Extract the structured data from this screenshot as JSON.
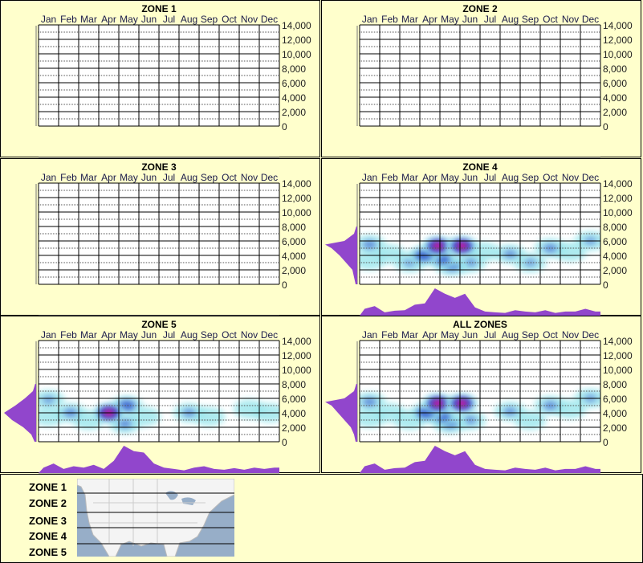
{
  "chart_data": [
    {
      "type": "heatmap",
      "title": "ZONE 1",
      "months": [
        "Jan",
        "Feb",
        "Mar",
        "Apr",
        "May",
        "Jun",
        "Jul",
        "Aug",
        "Sep",
        "Oct",
        "Nov",
        "Dec"
      ],
      "y_ticks": [
        "14,000",
        "12,000",
        "10,000",
        "8,000",
        "6,000",
        "4,000",
        "2,000",
        "0"
      ],
      "ylim": [
        0,
        14000
      ],
      "blobs": [],
      "month_profile": [],
      "altitude_profile": []
    },
    {
      "type": "heatmap",
      "title": "ZONE 2",
      "months": [
        "Jan",
        "Feb",
        "Mar",
        "Apr",
        "May",
        "Jun",
        "Jul",
        "Aug",
        "Sep",
        "Oct",
        "Nov",
        "Dec"
      ],
      "y_ticks": [
        "14,000",
        "12,000",
        "10,000",
        "8,000",
        "6,000",
        "4,000",
        "2,000",
        "0"
      ],
      "ylim": [
        0,
        14000
      ],
      "blobs": [],
      "month_profile": [],
      "altitude_profile": []
    },
    {
      "type": "heatmap",
      "title": "ZONE 3",
      "months": [
        "Jan",
        "Feb",
        "Mar",
        "Apr",
        "May",
        "Jun",
        "Jul",
        "Aug",
        "Sep",
        "Oct",
        "Nov",
        "Dec"
      ],
      "y_ticks": [
        "14,000",
        "12,000",
        "10,000",
        "8,000",
        "6,000",
        "4,000",
        "2,000",
        "0"
      ],
      "ylim": [
        0,
        14000
      ],
      "blobs": [],
      "month_profile": [],
      "altitude_profile": []
    },
    {
      "type": "heatmap",
      "title": "ZONE 4",
      "months": [
        "Jan",
        "Feb",
        "Mar",
        "Apr",
        "May",
        "Jun",
        "Jul",
        "Aug",
        "Sep",
        "Oct",
        "Nov",
        "Dec"
      ],
      "y_ticks": [
        "14,000",
        "12,000",
        "10,000",
        "8,000",
        "6,000",
        "4,000",
        "2,000",
        "0"
      ],
      "ylim": [
        0,
        14000
      ],
      "blobs": [
        [
          0.5,
          5500,
          0.55
        ],
        [
          0.5,
          3300,
          0.35
        ],
        [
          1.5,
          4200,
          0.4
        ],
        [
          2.5,
          3000,
          0.45
        ],
        [
          3.2,
          4000,
          0.8
        ],
        [
          4.1,
          3500,
          0.75
        ],
        [
          3.9,
          5300,
          1.0
        ],
        [
          5.1,
          5300,
          1.0
        ],
        [
          4.6,
          2500,
          0.6
        ],
        [
          5.5,
          3000,
          0.5
        ],
        [
          6.2,
          4500,
          0.3
        ],
        [
          7.5,
          4200,
          0.5
        ],
        [
          8.5,
          3000,
          0.45
        ],
        [
          9.5,
          5000,
          0.55
        ],
        [
          10.5,
          4500,
          0.3
        ],
        [
          11.5,
          6000,
          0.45
        ]
      ],
      "month_profile": [
        0.25,
        0.35,
        0.12,
        0.18,
        0.2,
        0.4,
        0.45,
        1.0,
        0.8,
        0.65,
        0.8,
        0.3,
        0.15,
        0.12,
        0.1,
        0.2,
        0.15,
        0.12,
        0.2,
        0.1,
        0.15,
        0.15,
        0.25,
        0.15
      ],
      "altitude_profile": [
        [
          0,
          0.05
        ],
        [
          1000,
          0.1
        ],
        [
          2000,
          0.15
        ],
        [
          3000,
          0.35
        ],
        [
          4000,
          0.55
        ],
        [
          5000,
          0.8
        ],
        [
          5500,
          1.0
        ],
        [
          6000,
          0.4
        ],
        [
          7000,
          0.1
        ],
        [
          8000,
          0.03
        ]
      ]
    },
    {
      "type": "heatmap",
      "title": "ZONE 5",
      "months": [
        "Jan",
        "Feb",
        "Mar",
        "Apr",
        "May",
        "Jun",
        "Jul",
        "Aug",
        "Sep",
        "Oct",
        "Nov",
        "Dec"
      ],
      "y_ticks": [
        "14,000",
        "12,000",
        "10,000",
        "8,000",
        "6,000",
        "4,000",
        "2,000",
        "0"
      ],
      "ylim": [
        0,
        14000
      ],
      "blobs": [
        [
          0.5,
          5800,
          0.45
        ],
        [
          0.5,
          3500,
          0.4
        ],
        [
          1.6,
          4000,
          0.55
        ],
        [
          2.5,
          3000,
          0.35
        ],
        [
          3.5,
          4000,
          1.0
        ],
        [
          4.4,
          5000,
          0.75
        ],
        [
          4.3,
          2500,
          0.55
        ],
        [
          5.3,
          3500,
          0.4
        ],
        [
          7.5,
          4000,
          0.5
        ],
        [
          8.5,
          3500,
          0.35
        ],
        [
          10.5,
          4500,
          0.3
        ],
        [
          11.5,
          4000,
          0.35
        ]
      ],
      "month_profile": [
        0.2,
        0.35,
        0.15,
        0.25,
        0.2,
        0.3,
        0.15,
        0.45,
        1.0,
        0.8,
        0.75,
        0.35,
        0.2,
        0.15,
        0.1,
        0.2,
        0.25,
        0.15,
        0.12,
        0.18,
        0.12,
        0.2,
        0.15,
        0.2
      ],
      "altitude_profile": [
        [
          0,
          0.05
        ],
        [
          1000,
          0.15
        ],
        [
          2000,
          0.4
        ],
        [
          3000,
          0.75
        ],
        [
          4000,
          1.0
        ],
        [
          5000,
          0.65
        ],
        [
          6000,
          0.35
        ],
        [
          7000,
          0.1
        ],
        [
          8000,
          0.03
        ]
      ]
    },
    {
      "type": "heatmap",
      "title": "ALL ZONES",
      "months": [
        "Jan",
        "Feb",
        "Mar",
        "Apr",
        "May",
        "Jun",
        "Jul",
        "Aug",
        "Sep",
        "Oct",
        "Nov",
        "Dec"
      ],
      "y_ticks": [
        "14,000",
        "12,000",
        "10,000",
        "8,000",
        "6,000",
        "4,000",
        "2,000",
        "0"
      ],
      "ylim": [
        0,
        14000
      ],
      "blobs": [
        [
          0.5,
          5500,
          0.55
        ],
        [
          0.5,
          3300,
          0.35
        ],
        [
          1.5,
          4000,
          0.4
        ],
        [
          2.5,
          3000,
          0.4
        ],
        [
          3.3,
          4000,
          0.8
        ],
        [
          4.1,
          3500,
          0.75
        ],
        [
          3.9,
          5300,
          1.0
        ],
        [
          5.1,
          5300,
          1.0
        ],
        [
          4.5,
          2500,
          0.6
        ],
        [
          5.5,
          3000,
          0.5
        ],
        [
          7.5,
          4200,
          0.5
        ],
        [
          8.5,
          3000,
          0.4
        ],
        [
          9.5,
          5000,
          0.55
        ],
        [
          10.5,
          4500,
          0.3
        ],
        [
          11.5,
          6000,
          0.45
        ]
      ],
      "month_profile": [
        0.25,
        0.35,
        0.12,
        0.18,
        0.2,
        0.4,
        0.45,
        1.0,
        0.8,
        0.65,
        0.8,
        0.3,
        0.15,
        0.12,
        0.1,
        0.2,
        0.15,
        0.12,
        0.2,
        0.1,
        0.15,
        0.15,
        0.25,
        0.15
      ],
      "altitude_profile": [
        [
          0,
          0.05
        ],
        [
          1000,
          0.1
        ],
        [
          2000,
          0.2
        ],
        [
          3000,
          0.4
        ],
        [
          4000,
          0.6
        ],
        [
          5000,
          0.8
        ],
        [
          5500,
          1.0
        ],
        [
          6000,
          0.4
        ],
        [
          7000,
          0.1
        ],
        [
          8000,
          0.03
        ]
      ]
    }
  ],
  "legend": {
    "zones": [
      "ZONE 1",
      "ZONE 2",
      "ZONE 3",
      "ZONE 4",
      "ZONE 5"
    ]
  },
  "colors": {
    "background": "#ffffcc",
    "profile": "#9146cc",
    "low": "#9ae6ec",
    "mid": "#1e3cc8",
    "high": "#ff1493"
  }
}
